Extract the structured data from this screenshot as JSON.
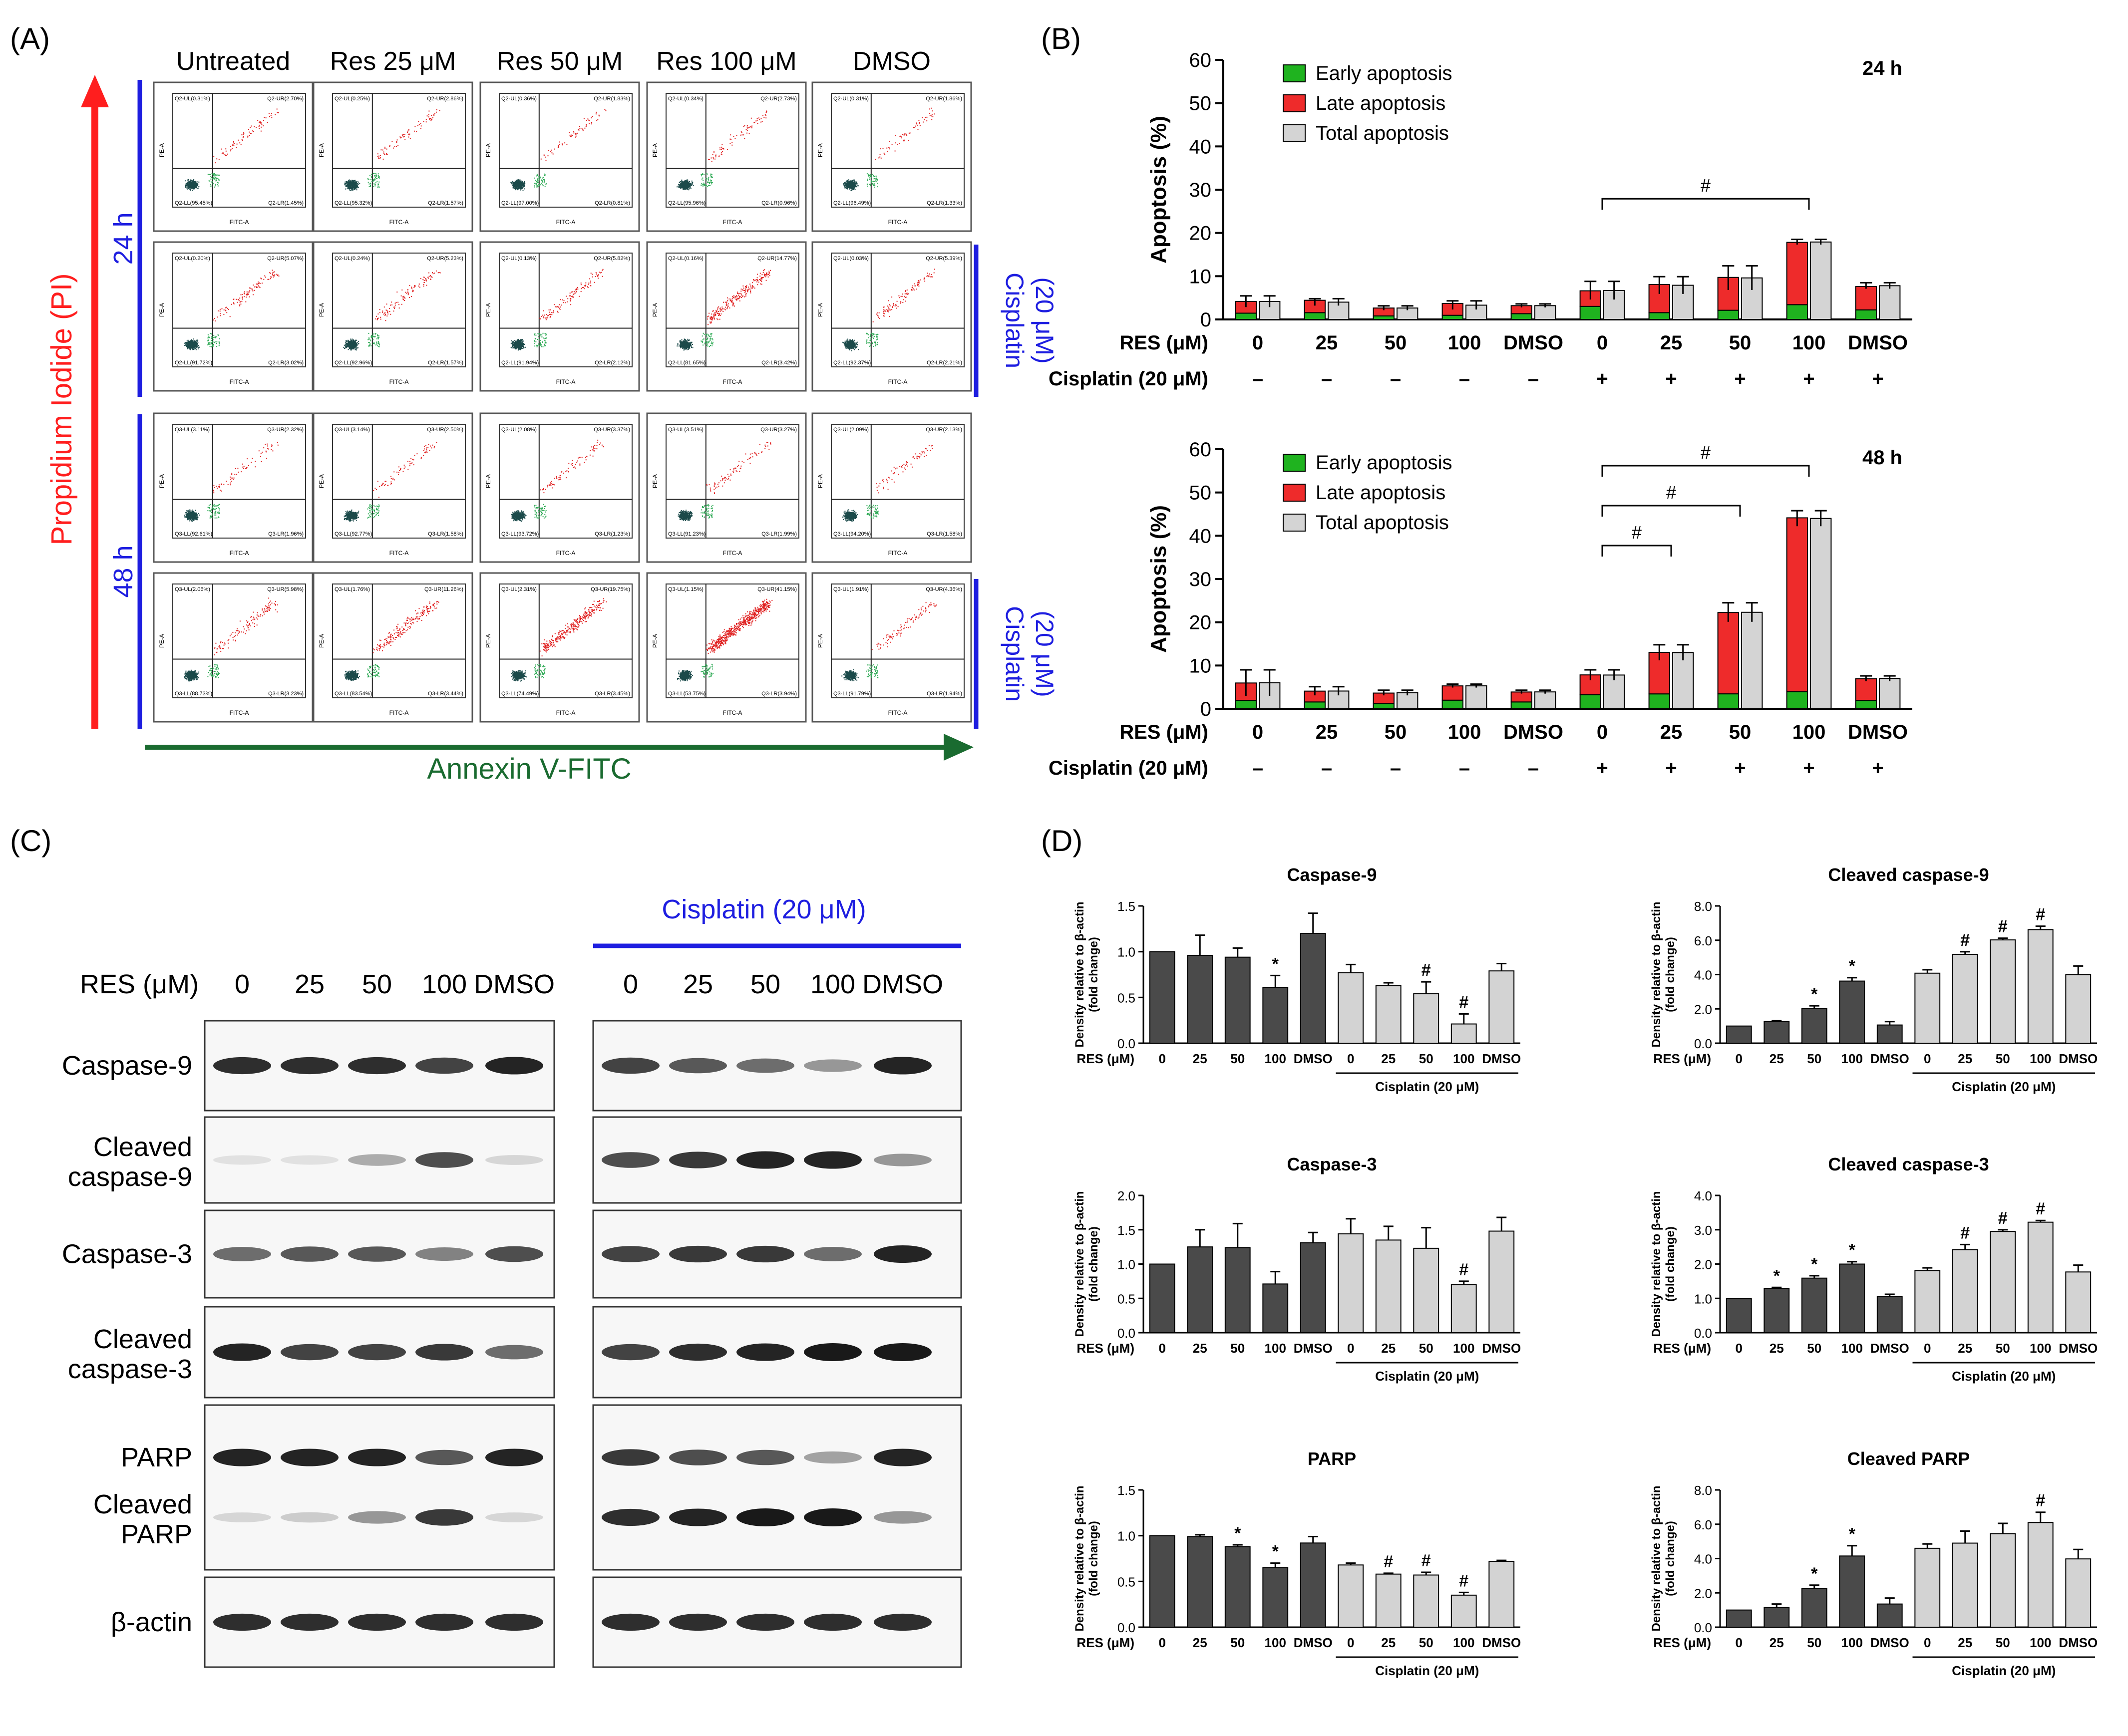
{
  "panel_labels": {
    "a": "(A)",
    "b": "(B)",
    "c": "(C)",
    "d": "(D)"
  },
  "flow": {
    "column_headers": [
      "Untreated",
      "Res 25 μM",
      "Res 50 μM",
      "Res 100 μM",
      "DMSO"
    ],
    "y_axis": "Propidium Iodide (PI)",
    "x_axis": "Annexin V-FITC",
    "time_24": "24 h",
    "time_48": "48 h",
    "cisplatin_a": "Cisplatin",
    "cisplatin_b": "(20 μM)",
    "plot_axis_x": "FITC-A",
    "plot_axis_y": "PE-A",
    "rows": [
      {
        "q": "Q2",
        "cells": [
          {
            "ul": "0.31%",
            "ur": "2.70%",
            "ll": "95.45%",
            "lr": "1.45%"
          },
          {
            "ul": "0.25%",
            "ur": "2.86%",
            "ll": "95.32%",
            "lr": "1.57%"
          },
          {
            "ul": "0.36%",
            "ur": "1.83%",
            "ll": "97.00%",
            "lr": "0.81%"
          },
          {
            "ul": "0.34%",
            "ur": "2.73%",
            "ll": "95.96%",
            "lr": "0.96%"
          },
          {
            "ul": "0.31%",
            "ur": "1.86%",
            "ll": "96.49%",
            "lr": "1.33%"
          }
        ]
      },
      {
        "q": "Q2",
        "cells": [
          {
            "ul": "0.20%",
            "ur": "5.07%",
            "ll": "91.72%",
            "lr": "3.02%"
          },
          {
            "ul": "0.24%",
            "ur": "5.23%",
            "ll": "92.96%",
            "lr": "1.57%"
          },
          {
            "ul": "0.13%",
            "ur": "5.82%",
            "ll": "91.94%",
            "lr": "2.12%"
          },
          {
            "ul": "0.16%",
            "ur": "14.77%",
            "ll": "81.65%",
            "lr": "3.42%"
          },
          {
            "ul": "0.03%",
            "ur": "5.39%",
            "ll": "92.37%",
            "lr": "2.21%"
          }
        ]
      },
      {
        "q": "Q3",
        "cells": [
          {
            "ul": "3.11%",
            "ur": "2.32%",
            "ll": "92.61%",
            "lr": "1.96%"
          },
          {
            "ul": "3.14%",
            "ur": "2.50%",
            "ll": "92.77%",
            "lr": "1.58%"
          },
          {
            "ul": "2.08%",
            "ur": "3.37%",
            "ll": "93.72%",
            "lr": "1.23%"
          },
          {
            "ul": "3.51%",
            "ur": "3.27%",
            "ll": "91.23%",
            "lr": "1.99%"
          },
          {
            "ul": "2.09%",
            "ur": "2.13%",
            "ll": "94.20%",
            "lr": "1.58%"
          }
        ]
      },
      {
        "q": "Q3",
        "cells": [
          {
            "ul": "2.06%",
            "ur": "5.98%",
            "ll": "88.73%",
            "lr": "3.23%"
          },
          {
            "ul": "1.76%",
            "ur": "11.26%",
            "ll": "83.54%",
            "lr": "3.44%"
          },
          {
            "ul": "2.31%",
            "ur": "19.75%",
            "ll": "74.49%",
            "lr": "3.45%"
          },
          {
            "ul": "1.15%",
            "ur": "41.15%",
            "ll": "53.75%",
            "lr": "3.94%"
          },
          {
            "ul": "1.91%",
            "ur": "4.36%",
            "ll": "91.79%",
            "lr": "1.94%"
          }
        ]
      }
    ]
  },
  "western": {
    "res_label": "RES (μM)",
    "cisplatin_label": "Cisplatin (20 μM)",
    "lanes": [
      "0",
      "25",
      "50",
      "100",
      "DMSO"
    ],
    "proteins": [
      {
        "line1": "Caspase-9",
        "line2": ""
      },
      {
        "line1": "Cleaved",
        "line2": "caspase-9"
      },
      {
        "line1": "Caspase-3",
        "line2": ""
      },
      {
        "line1": "Cleaved",
        "line2": "caspase-3"
      },
      {
        "line1": "PARP",
        "line2": ""
      },
      {
        "line1": "Cleaved",
        "line2": "PARP"
      },
      {
        "line1": "β-actin",
        "line2": ""
      }
    ]
  },
  "colors": {
    "early": "#1fb31f",
    "late": "#ee2b2b",
    "total": "#d4d4d4",
    "dark_bar": "#4a4a4a",
    "light_bar": "#d3d3d3",
    "blue": "#1e1ee0",
    "red_arrow": "#ff1e1e",
    "green_arrow": "#1a6b30"
  },
  "chart_data": [
    {
      "type": "bar",
      "stacked_with_total": true,
      "title": "24 h",
      "ylabel": "Apoptosis (%)",
      "ylim": [
        0,
        60
      ],
      "yticks": [
        "0",
        "10",
        "20",
        "30",
        "40",
        "50",
        "60"
      ],
      "row1_label": "RES (μM)",
      "row2_label": "Cisplatin (20 μM)",
      "categories": [
        "0",
        "25",
        "50",
        "100",
        "DMSO",
        "0",
        "25",
        "50",
        "100",
        "DMSO"
      ],
      "cisplatin": [
        "–",
        "–",
        "–",
        "–",
        "–",
        "+",
        "+",
        "+",
        "+",
        "+"
      ],
      "legend": [
        "Early apoptosis",
        "Late apoptosis",
        "Total apoptosis"
      ],
      "series": [
        {
          "name": "Early apoptosis",
          "values": [
            1.45,
            1.57,
            0.81,
            0.96,
            1.33,
            3.02,
            1.57,
            2.12,
            3.42,
            2.21
          ]
        },
        {
          "name": "Late apoptosis",
          "values": [
            2.7,
            2.86,
            1.83,
            2.73,
            1.86,
            3.6,
            6.5,
            7.6,
            14.4,
            5.4
          ]
        },
        {
          "name": "Total apoptosis",
          "values": [
            4.15,
            4.0,
            2.64,
            3.3,
            3.19,
            6.7,
            7.9,
            9.6,
            17.9,
            7.8
          ]
        }
      ],
      "errors": [
        1.3,
        0.8,
        0.5,
        1.0,
        0.4,
        2.1,
        2.0,
        2.8,
        0.6,
        0.7
      ],
      "significance": [
        {
          "from": 5,
          "to": 8,
          "label": "#"
        }
      ]
    },
    {
      "type": "bar",
      "stacked_with_total": true,
      "title": "48 h",
      "ylabel": "Apoptosis (%)",
      "ylim": [
        0,
        60
      ],
      "yticks": [
        "0",
        "10",
        "20",
        "30",
        "40",
        "50",
        "60"
      ],
      "row1_label": "RES (μM)",
      "row2_label": "Cisplatin (20 μM)",
      "categories": [
        "0",
        "25",
        "50",
        "100",
        "DMSO",
        "0",
        "25",
        "50",
        "100",
        "DMSO"
      ],
      "cisplatin": [
        "–",
        "–",
        "–",
        "–",
        "–",
        "+",
        "+",
        "+",
        "+",
        "+"
      ],
      "legend": [
        "Early apoptosis",
        "Late apoptosis",
        "Total apoptosis"
      ],
      "series": [
        {
          "name": "Early apoptosis",
          "values": [
            1.96,
            1.58,
            1.23,
            1.99,
            1.58,
            3.23,
            3.44,
            3.45,
            3.94,
            1.94
          ]
        },
        {
          "name": "Late apoptosis",
          "values": [
            4.0,
            2.5,
            2.4,
            3.3,
            2.3,
            4.6,
            9.6,
            18.8,
            40.2,
            5.0
          ]
        },
        {
          "name": "Total apoptosis",
          "values": [
            6.0,
            4.1,
            3.7,
            5.3,
            3.9,
            7.8,
            13.0,
            22.3,
            44.0,
            7.0
          ]
        }
      ],
      "errors": [
        3.0,
        1.0,
        0.6,
        0.4,
        0.4,
        1.2,
        1.8,
        2.2,
        1.8,
        0.6
      ],
      "significance": [
        {
          "from": 5,
          "to": 6,
          "label": "#"
        },
        {
          "from": 5,
          "to": 7,
          "label": "#"
        },
        {
          "from": 5,
          "to": 8,
          "label": "#"
        }
      ]
    },
    {
      "type": "bar",
      "title": "Caspase-9",
      "ylabel": "Density relative to β-actin",
      "ylabel2": "(fold change)",
      "ylim": [
        0,
        1.5
      ],
      "yticks": [
        "0.0",
        "0.5",
        "1.0",
        "1.5"
      ],
      "res_label": "RES (μM)",
      "cis_label": "Cisplatin (20 μM)",
      "categories": [
        "0",
        "25",
        "50",
        "100",
        "DMSO",
        "0",
        "25",
        "50",
        "100",
        "DMSO"
      ],
      "values": [
        1.0,
        0.96,
        0.94,
        0.61,
        1.2,
        0.77,
        0.63,
        0.54,
        0.21,
        0.79
      ],
      "errors": [
        0,
        0.22,
        0.1,
        0.13,
        0.22,
        0.09,
        0.03,
        0.13,
        0.11,
        0.08
      ],
      "marks": [
        "",
        "",
        "",
        "*",
        "",
        "",
        "",
        "#",
        "#",
        ""
      ]
    },
    {
      "type": "bar",
      "title": "Cleaved caspase-9",
      "ylabel": "Density relative to β-actin",
      "ylabel2": "(fold change)",
      "ylim": [
        0,
        8
      ],
      "yticks": [
        "0.0",
        "2.0",
        "4.0",
        "6.0",
        "8.0"
      ],
      "res_label": "RES (μM)",
      "cis_label": "Cisplatin (20 μM)",
      "categories": [
        "0",
        "25",
        "50",
        "100",
        "DMSO",
        "0",
        "25",
        "50",
        "100",
        "DMSO"
      ],
      "values": [
        1.0,
        1.27,
        2.03,
        3.62,
        1.06,
        4.08,
        5.18,
        6.02,
        6.62,
        4.0
      ],
      "errors": [
        0,
        0.05,
        0.15,
        0.2,
        0.2,
        0.2,
        0.15,
        0.1,
        0.2,
        0.5
      ],
      "marks": [
        "",
        "",
        "*",
        "*",
        "",
        "",
        "#",
        "#",
        "#",
        ""
      ]
    },
    {
      "type": "bar",
      "title": "Caspase-3",
      "ylabel": "Density relative to β-actin",
      "ylabel2": "(fold change)",
      "ylim": [
        0,
        2
      ],
      "yticks": [
        "0.0",
        "0.5",
        "1.0",
        "1.5",
        "2.0"
      ],
      "res_label": "RES (μM)",
      "cis_label": "Cisplatin (20 μM)",
      "categories": [
        "0",
        "25",
        "50",
        "100",
        "DMSO",
        "0",
        "25",
        "50",
        "100",
        "DMSO"
      ],
      "values": [
        1.0,
        1.25,
        1.24,
        0.71,
        1.31,
        1.44,
        1.35,
        1.23,
        0.7,
        1.48
      ],
      "errors": [
        0,
        0.25,
        0.35,
        0.18,
        0.15,
        0.22,
        0.2,
        0.3,
        0.05,
        0.2
      ],
      "marks": [
        "",
        "",
        "",
        "",
        "",
        "",
        "",
        "",
        "#",
        ""
      ]
    },
    {
      "type": "bar",
      "title": "Cleaved caspase-3",
      "ylabel": "Density relative to β-actin",
      "ylabel2": "(fold change)",
      "ylim": [
        0,
        4
      ],
      "yticks": [
        "0.0",
        "1.0",
        "2.0",
        "3.0",
        "4.0"
      ],
      "res_label": "RES (μM)",
      "cis_label": "Cisplatin (20 μM)",
      "categories": [
        "0",
        "25",
        "50",
        "100",
        "DMSO",
        "0",
        "25",
        "50",
        "100",
        "DMSO"
      ],
      "values": [
        1.0,
        1.29,
        1.59,
        2.0,
        1.05,
        1.81,
        2.42,
        2.95,
        3.22,
        1.77
      ],
      "errors": [
        0,
        0.03,
        0.07,
        0.07,
        0.07,
        0.08,
        0.15,
        0.05,
        0.05,
        0.2
      ],
      "marks": [
        "",
        "*",
        "*",
        "*",
        "",
        "",
        "#",
        "#",
        "#",
        ""
      ]
    },
    {
      "type": "bar",
      "title": "PARP",
      "ylabel": "Density relative to β-actin",
      "ylabel2": "(fold change)",
      "ylim": [
        0,
        1.5
      ],
      "yticks": [
        "0.0",
        "0.5",
        "1.0",
        "1.5"
      ],
      "res_label": "RES (μM)",
      "cis_label": "Cisplatin (20 μM)",
      "categories": [
        "0",
        "25",
        "50",
        "100",
        "DMSO",
        "0",
        "25",
        "50",
        "100",
        "DMSO"
      ],
      "values": [
        1.0,
        0.99,
        0.88,
        0.65,
        0.92,
        0.68,
        0.58,
        0.57,
        0.35,
        0.72
      ],
      "errors": [
        0,
        0.02,
        0.02,
        0.05,
        0.07,
        0.02,
        0.01,
        0.03,
        0.03,
        0.01
      ],
      "marks": [
        "",
        "",
        "*",
        "*",
        "",
        "",
        "#",
        "#",
        "#",
        ""
      ]
    },
    {
      "type": "bar",
      "title": "Cleaved PARP",
      "ylabel": "Density relative to β-actin",
      "ylabel2": "(fold change)",
      "ylim": [
        0,
        8
      ],
      "yticks": [
        "0.0",
        "2.0",
        "4.0",
        "6.0",
        "8.0"
      ],
      "res_label": "RES (μM)",
      "cis_label": "Cisplatin (20 μM)",
      "categories": [
        "0",
        "25",
        "50",
        "100",
        "DMSO",
        "0",
        "25",
        "50",
        "100",
        "DMSO"
      ],
      "values": [
        1.0,
        1.15,
        2.25,
        4.15,
        1.35,
        4.6,
        4.9,
        5.45,
        6.1,
        3.98
      ],
      "errors": [
        0,
        0.2,
        0.2,
        0.6,
        0.35,
        0.25,
        0.7,
        0.6,
        0.6,
        0.55
      ],
      "marks": [
        "",
        "",
        "*",
        "*",
        "",
        "",
        "",
        "",
        "#",
        ""
      ]
    }
  ]
}
